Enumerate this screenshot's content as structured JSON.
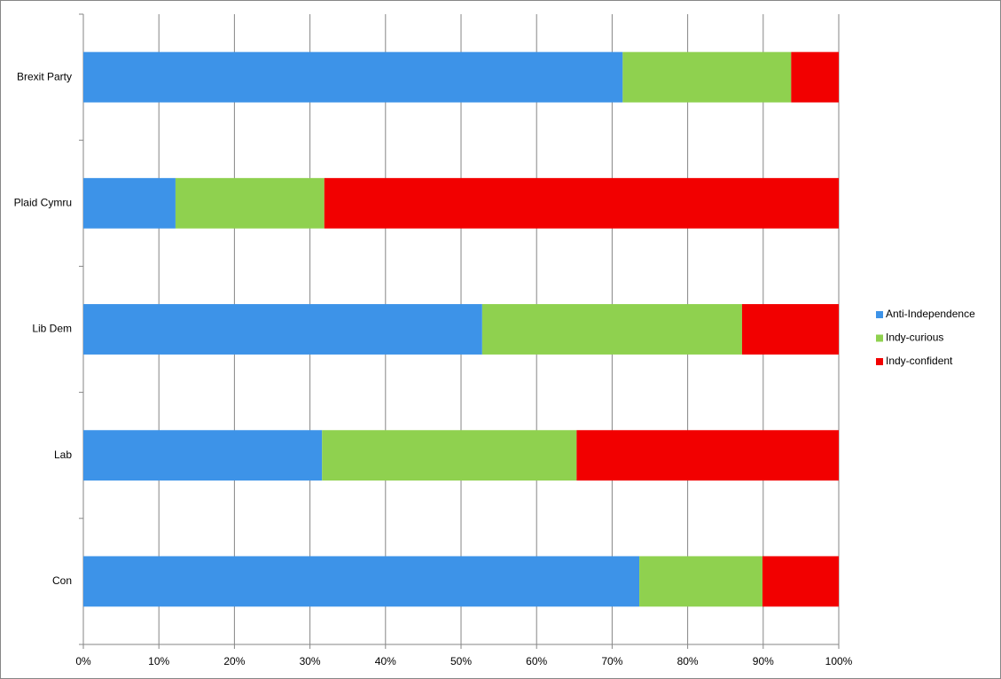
{
  "chart_data": {
    "type": "stacked_bar_horizontal",
    "categories": [
      "Brexit Party",
      "Plaid Cymru",
      "Lib Dem",
      "Lab",
      "Con"
    ],
    "series": [
      {
        "name": "Anti-Independence",
        "color": "#3d93e8",
        "values": [
          71.4,
          12.2,
          52.8,
          31.6,
          73.6
        ]
      },
      {
        "name": "Indy-curious",
        "color": "#8fd14f",
        "values": [
          22.3,
          19.7,
          34.4,
          33.7,
          16.3
        ]
      },
      {
        "name": "Indy-confident",
        "color": "#f20000",
        "values": [
          6.3,
          68.1,
          12.8,
          34.7,
          10.1
        ]
      }
    ],
    "xlim": [
      0,
      100
    ],
    "xticks": [
      {
        "value": 0,
        "label": "0%"
      },
      {
        "value": 10,
        "label": "10%"
      },
      {
        "value": 20,
        "label": "20%"
      },
      {
        "value": 30,
        "label": "30%"
      },
      {
        "value": 40,
        "label": "40%"
      },
      {
        "value": 50,
        "label": "50%"
      },
      {
        "value": 60,
        "label": "60%"
      },
      {
        "value": 70,
        "label": "70%"
      },
      {
        "value": 80,
        "label": "80%"
      },
      {
        "value": 90,
        "label": "90%"
      },
      {
        "value": 100,
        "label": "100%"
      }
    ],
    "grid": true,
    "legend": "right"
  }
}
